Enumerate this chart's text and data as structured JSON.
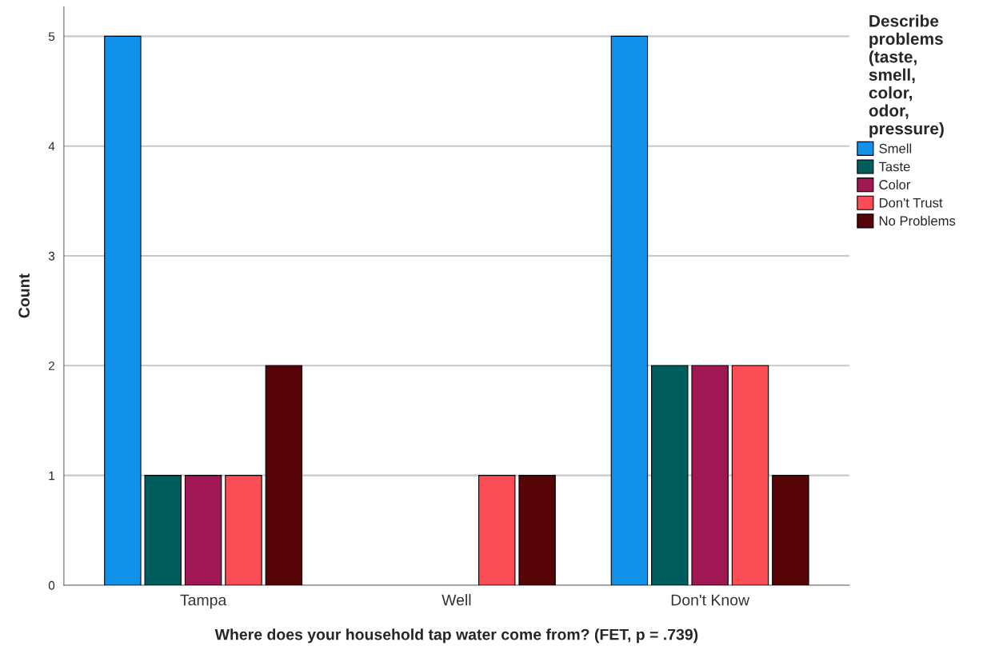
{
  "chart_data": {
    "type": "bar",
    "xlabel": "Where does your household tap water come from? (FET, p = .739)",
    "ylabel": "Count",
    "legend_title": "Describe problems (taste, smell, color, odor, pressure)",
    "categories": [
      "Tampa",
      "Well",
      "Don't Know"
    ],
    "series": [
      {
        "name": "Smell",
        "color": "#1192e8",
        "values": [
          5,
          null,
          5
        ]
      },
      {
        "name": "Taste",
        "color": "#005d5d",
        "values": [
          1,
          null,
          2
        ]
      },
      {
        "name": "Color",
        "color": "#9f1853",
        "values": [
          1,
          null,
          2
        ]
      },
      {
        "name": "Don't Trust",
        "color": "#fa4d56",
        "values": [
          1,
          1,
          2
        ]
      },
      {
        "name": "No Problems",
        "color": "#570408",
        "values": [
          2,
          1,
          1
        ]
      }
    ],
    "ylim": [
      0,
      5.27
    ],
    "yticks": [
      0,
      1,
      2,
      3,
      4,
      5
    ],
    "grid": "y",
    "legend": "right"
  }
}
